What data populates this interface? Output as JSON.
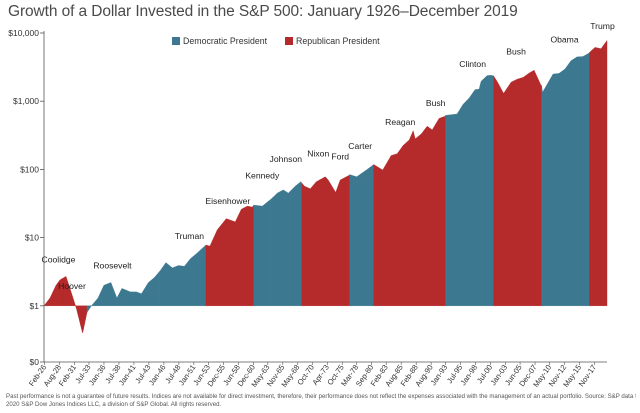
{
  "chart_data": {
    "type": "area",
    "title": "Growth of a Dollar Invested in the S&P 500: January 1926–December 2019",
    "xlabel": "",
    "ylabel": "",
    "y_scale": "log",
    "ylim": [
      0.15,
      10000
    ],
    "y_ticks": [
      {
        "value": 0.15,
        "label": "$0"
      },
      {
        "value": 1,
        "label": "$1"
      },
      {
        "value": 10,
        "label": "$10"
      },
      {
        "value": 100,
        "label": "$100"
      },
      {
        "value": 1000,
        "label": "$1,000"
      },
      {
        "value": 10000,
        "label": "$10,000"
      }
    ],
    "x_range": [
      "1926-01",
      "2019-12"
    ],
    "x_tick_labels": [
      "Feb-26",
      "Aug-28",
      "Feb-31",
      "Jul-33",
      "Jan-36",
      "Jul-38",
      "Jan-41",
      "Jul-43",
      "Jan-46",
      "Jul-48",
      "Jan-51",
      "Jun-53",
      "Dec-55",
      "Jun-58",
      "Dec-60",
      "May-63",
      "Nov-65",
      "May-68",
      "Oct-70",
      "Apr-73",
      "Oct-75",
      "Mar-78",
      "Sep-80",
      "Feb-83",
      "Aug-85",
      "Feb-88",
      "Aug-90",
      "Jan-93",
      "Jul-95",
      "Jan-98",
      "Jul-00",
      "Jan-03",
      "Jun-05",
      "Dec-07",
      "May-10",
      "Nov-12",
      "May-15",
      "Nov-17"
    ],
    "x_tick_dates": [
      "1926-02",
      "1928-08",
      "1931-02",
      "1933-07",
      "1936-01",
      "1938-07",
      "1941-01",
      "1943-07",
      "1946-01",
      "1948-07",
      "1951-01",
      "1953-06",
      "1955-12",
      "1958-06",
      "1960-12",
      "1963-05",
      "1965-11",
      "1968-05",
      "1970-10",
      "1973-04",
      "1975-10",
      "1978-03",
      "1980-09",
      "1983-02",
      "1985-08",
      "1988-02",
      "1990-08",
      "1993-01",
      "1995-07",
      "1998-01",
      "2000-07",
      "2003-01",
      "2005-06",
      "2007-12",
      "2010-05",
      "2012-11",
      "2015-05",
      "2017-11"
    ],
    "series": [
      {
        "name": "Growth of $1",
        "x": [
          "1926-01",
          "1927-01",
          "1928-01",
          "1928-09",
          "1929-09",
          "1930-06",
          "1931-06",
          "1932-06",
          "1932-07",
          "1933-03",
          "1933-12",
          "1935-01",
          "1936-01",
          "1937-03",
          "1938-03",
          "1939-01",
          "1940-06",
          "1941-06",
          "1942-04",
          "1943-06",
          "1944-06",
          "1945-06",
          "1946-05",
          "1947-06",
          "1948-06",
          "1949-06",
          "1950-06",
          "1951-06",
          "1952-06",
          "1953-01",
          "1953-09",
          "1954-12",
          "1956-06",
          "1957-12",
          "1958-12",
          "1959-12",
          "1960-10",
          "1961-01",
          "1962-06",
          "1963-12",
          "1964-12",
          "1965-12",
          "1966-10",
          "1967-12",
          "1968-11",
          "1969-06",
          "1970-06",
          "1971-06",
          "1972-12",
          "1973-06",
          "1974-09",
          "1975-06",
          "1976-12",
          "1977-01",
          "1978-03",
          "1979-12",
          "1980-11",
          "1981-01",
          "1982-07",
          "1983-12",
          "1984-12",
          "1985-12",
          "1986-12",
          "1987-08",
          "1987-12",
          "1988-12",
          "1989-12",
          "1990-10",
          "1991-12",
          "1992-12",
          "1993-01",
          "1994-12",
          "1995-12",
          "1996-12",
          "1997-12",
          "1998-08",
          "1998-12",
          "1999-12",
          "2000-08",
          "2001-01",
          "2001-09",
          "2002-09",
          "2003-12",
          "2004-12",
          "2005-12",
          "2006-12",
          "2007-10",
          "2008-12",
          "2009-01",
          "2009-03",
          "2010-12",
          "2011-12",
          "2012-12",
          "2013-12",
          "2014-12",
          "2015-12",
          "2016-12",
          "2017-01",
          "2017-12",
          "2018-12",
          "2019-12"
        ],
        "y": [
          1,
          1.3,
          2.0,
          2.4,
          2.7,
          1.7,
          0.9,
          0.4,
          0.42,
          0.8,
          1.0,
          1.3,
          2.0,
          2.2,
          1.3,
          1.8,
          1.6,
          1.6,
          1.5,
          2.2,
          2.6,
          3.3,
          4.3,
          3.6,
          3.9,
          3.8,
          4.9,
          5.8,
          7.0,
          7.8,
          7.5,
          13,
          19,
          17,
          26,
          29,
          28,
          30,
          29,
          37,
          45,
          50,
          45,
          57,
          66,
          57,
          52,
          66,
          78,
          70,
          46,
          70,
          82,
          84,
          78,
          100,
          115,
          118,
          98,
          160,
          170,
          225,
          270,
          370,
          280,
          330,
          430,
          380,
          560,
          600,
          620,
          650,
          900,
          1110,
          1480,
          1500,
          1960,
          2370,
          2400,
          2350,
          1900,
          1300,
          1900,
          2100,
          2230,
          2580,
          2850,
          1700,
          1700,
          1350,
          2500,
          2560,
          2970,
          3930,
          4460,
          4530,
          5070,
          5200,
          6160,
          5890,
          7750
        ]
      }
    ],
    "regions": [
      {
        "party": "Republican",
        "president": "Coolidge",
        "start": "1926-01",
        "end": "1929-03"
      },
      {
        "party": "Republican",
        "president": "Hoover",
        "start": "1929-03",
        "end": "1933-03"
      },
      {
        "party": "Democratic",
        "president": "Roosevelt",
        "start": "1933-03",
        "end": "1945-04"
      },
      {
        "party": "Democratic",
        "president": "Truman",
        "start": "1945-04",
        "end": "1953-01"
      },
      {
        "party": "Republican",
        "president": "Eisenhower",
        "start": "1953-01",
        "end": "1961-01"
      },
      {
        "party": "Democratic",
        "president": "Kennedy",
        "start": "1961-01",
        "end": "1963-11"
      },
      {
        "party": "Democratic",
        "president": "Johnson",
        "start": "1963-11",
        "end": "1969-01"
      },
      {
        "party": "Republican",
        "president": "Nixon",
        "start": "1969-01",
        "end": "1974-08"
      },
      {
        "party": "Republican",
        "president": "Ford",
        "start": "1974-08",
        "end": "1977-01"
      },
      {
        "party": "Democratic",
        "president": "Carter",
        "start": "1977-01",
        "end": "1981-01"
      },
      {
        "party": "Republican",
        "president": "Reagan",
        "start": "1981-01",
        "end": "1989-01"
      },
      {
        "party": "Republican",
        "president": "Bush",
        "start": "1989-01",
        "end": "1993-01"
      },
      {
        "party": "Democratic",
        "president": "Clinton",
        "start": "1993-01",
        "end": "2001-01"
      },
      {
        "party": "Republican",
        "president": "Bush",
        "start": "2001-01",
        "end": "2009-01"
      },
      {
        "party": "Democratic",
        "president": "Obama",
        "start": "2009-01",
        "end": "2017-01"
      },
      {
        "party": "Republican",
        "president": "Trump",
        "start": "2017-01",
        "end": "2019-12"
      }
    ],
    "president_labels": [
      {
        "text": "Coolidge",
        "date": "1928-06",
        "value": 4.3
      },
      {
        "text": "Hoover",
        "date": "1930-09",
        "value": 1.75
      },
      {
        "text": "Roosevelt",
        "date": "1937-06",
        "value": 3.5
      },
      {
        "text": "Truman",
        "date": "1950-04",
        "value": 9.5
      },
      {
        "text": "Eisenhower",
        "date": "1956-09",
        "value": 31
      },
      {
        "text": "Kennedy",
        "date": "1962-06",
        "value": 74
      },
      {
        "text": "Johnson",
        "date": "1966-05",
        "value": 129
      },
      {
        "text": "Nixon",
        "date": "1971-10",
        "value": 155
      },
      {
        "text": "Ford",
        "date": "1975-06",
        "value": 140
      },
      {
        "text": "Carter",
        "date": "1978-10",
        "value": 198
      },
      {
        "text": "Reagan",
        "date": "1985-06",
        "value": 450
      },
      {
        "text": "Bush",
        "date": "1991-05",
        "value": 850
      },
      {
        "text": "Clinton",
        "date": "1997-07",
        "value": 3150
      },
      {
        "text": "Bush",
        "date": "2004-10",
        "value": 4800
      },
      {
        "text": "Obama",
        "date": "2012-11",
        "value": 7300
      },
      {
        "text": "Trump",
        "date": "2019-03",
        "value": 11500
      }
    ],
    "legend": {
      "position": "top-center",
      "items": [
        {
          "label": "Democratic President",
          "color": "#3d7891"
        },
        {
          "label": "Republican President",
          "color": "#b52a2a"
        }
      ]
    },
    "colors": {
      "Democratic": "#3d7891",
      "Republican": "#b52a2a",
      "axis": "#555555",
      "grid": "#dddddd"
    },
    "grid": false
  },
  "footnote": {
    "line1": "Past performance is not a guarantee of future results. Indices are not available for direct investment, therefore, their performance does not reflect the expenses associated with the management of an actual portfolio. Source: S&P data ©",
    "line2": "2020 S&P Dow Jones Indices LLC, a division of S&P Global. All rights reserved."
  }
}
